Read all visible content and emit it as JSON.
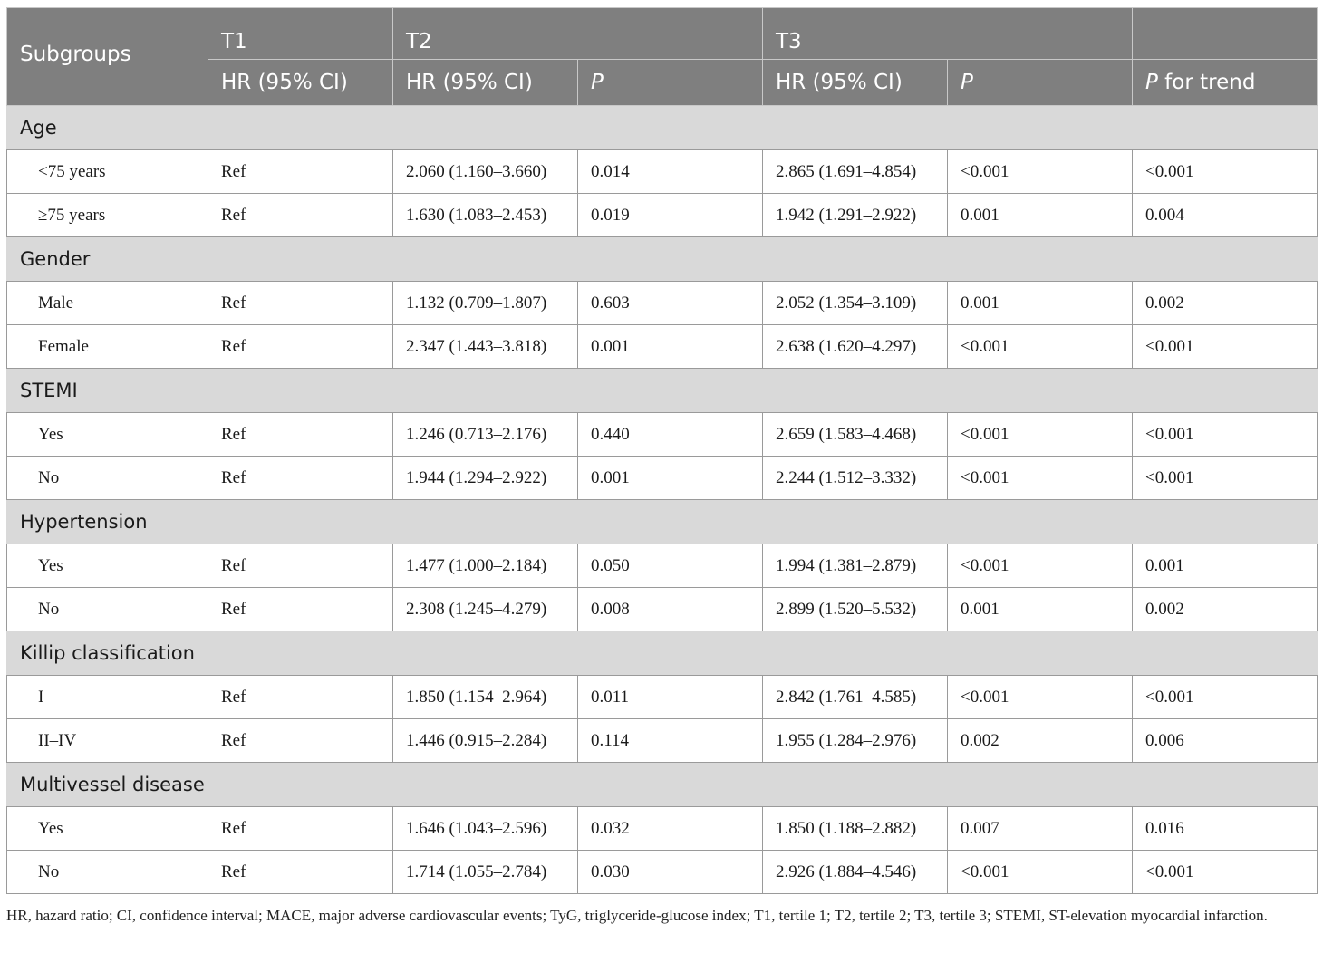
{
  "header": {
    "subgroups": "Subgroups",
    "t1": "T1",
    "t2": "T2",
    "t3": "T3",
    "hr_ci": "HR (95% CI)",
    "p": "P",
    "p_for_trend_p": "P",
    "p_for_trend_rest": " for trend"
  },
  "groups": [
    {
      "name": "Age",
      "rows": [
        {
          "label": "<75 years",
          "t1": "Ref",
          "t2_hr": "2.060 (1.160–3.660)",
          "t2_p": "0.014",
          "t3_hr": "2.865 (1.691–4.854)",
          "t3_p": "<0.001",
          "trend": "<0.001"
        },
        {
          "label": "≥75 years",
          "t1": "Ref",
          "t2_hr": "1.630 (1.083–2.453)",
          "t2_p": "0.019",
          "t3_hr": "1.942 (1.291–2.922)",
          "t3_p": "0.001",
          "trend": "0.004"
        }
      ]
    },
    {
      "name": "Gender",
      "rows": [
        {
          "label": "Male",
          "t1": "Ref",
          "t2_hr": "1.132 (0.709–1.807)",
          "t2_p": "0.603",
          "t3_hr": "2.052 (1.354–3.109)",
          "t3_p": "0.001",
          "trend": "0.002"
        },
        {
          "label": "Female",
          "t1": "Ref",
          "t2_hr": "2.347 (1.443–3.818)",
          "t2_p": "0.001",
          "t3_hr": "2.638 (1.620–4.297)",
          "t3_p": "<0.001",
          "trend": "<0.001"
        }
      ]
    },
    {
      "name": "STEMI",
      "rows": [
        {
          "label": "Yes",
          "t1": "Ref",
          "t2_hr": "1.246 (0.713–2.176)",
          "t2_p": "0.440",
          "t3_hr": "2.659 (1.583–4.468)",
          "t3_p": "<0.001",
          "trend": "<0.001"
        },
        {
          "label": "No",
          "t1": "Ref",
          "t2_hr": "1.944 (1.294–2.922)",
          "t2_p": "0.001",
          "t3_hr": "2.244 (1.512–3.332)",
          "t3_p": "<0.001",
          "trend": "<0.001"
        }
      ]
    },
    {
      "name": "Hypertension",
      "rows": [
        {
          "label": "Yes",
          "t1": "Ref",
          "t2_hr": "1.477 (1.000–2.184)",
          "t2_p": "0.050",
          "t3_hr": "1.994 (1.381–2.879)",
          "t3_p": "<0.001",
          "trend": "0.001"
        },
        {
          "label": "No",
          "t1": "Ref",
          "t2_hr": "2.308 (1.245–4.279)",
          "t2_p": "0.008",
          "t3_hr": "2.899 (1.520–5.532)",
          "t3_p": "0.001",
          "trend": "0.002"
        }
      ]
    },
    {
      "name": "Killip classification",
      "rows": [
        {
          "label": "I",
          "t1": "Ref",
          "t2_hr": "1.850 (1.154–2.964)",
          "t2_p": "0.011",
          "t3_hr": "2.842 (1.761–4.585)",
          "t3_p": "<0.001",
          "trend": "<0.001"
        },
        {
          "label": "II–IV",
          "t1": "Ref",
          "t2_hr": "1.446 (0.915–2.284)",
          "t2_p": "0.114",
          "t3_hr": "1.955 (1.284–2.976)",
          "t3_p": "0.002",
          "trend": "0.006"
        }
      ]
    },
    {
      "name": "Multivessel disease",
      "rows": [
        {
          "label": "Yes",
          "t1": "Ref",
          "t2_hr": "1.646 (1.043–2.596)",
          "t2_p": "0.032",
          "t3_hr": "1.850 (1.188–2.882)",
          "t3_p": "0.007",
          "trend": "0.016"
        },
        {
          "label": "No",
          "t1": "Ref",
          "t2_hr": "1.714 (1.055–2.784)",
          "t2_p": "0.030",
          "t3_hr": "2.926 (1.884–4.546)",
          "t3_p": "<0.001",
          "trend": "<0.001"
        }
      ]
    }
  ],
  "footnote": "HR, hazard ratio; CI, confidence interval; MACE, major adverse cardiovascular events; TyG, triglyceride-glucose index; T1, tertile 1; T2, tertile 2; T3, tertile 3; STEMI, ST-elevation myocardial infarction.",
  "colors": {
    "header_bg": "#7f7f7f",
    "group_bg": "#d9d9d9"
  }
}
